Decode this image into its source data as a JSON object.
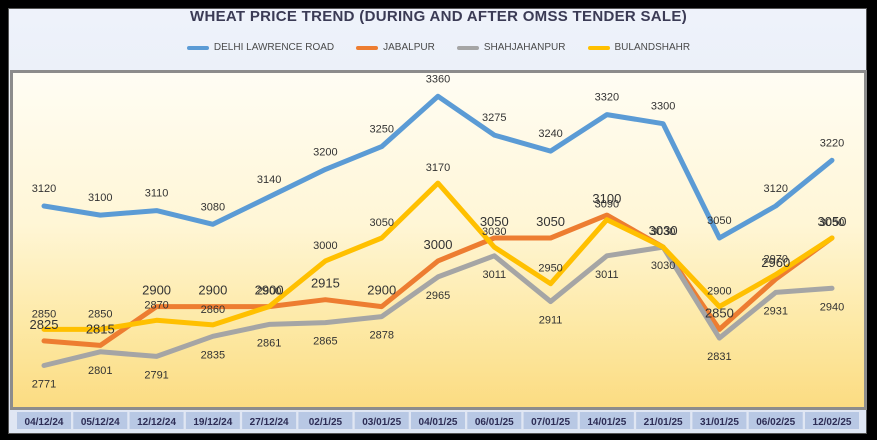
{
  "chart_data": {
    "type": "line",
    "title": "WHEAT PRICE TREND (DURING AND AFTER  OMSS TENDER SALE)",
    "xlabel": "",
    "ylabel": "",
    "ylim": [
      2700,
      3400
    ],
    "grid": false,
    "legend_position": "top",
    "categories": [
      "04/12/24",
      "05/12/24",
      "12/12/24",
      "19/12/24",
      "27/12/24",
      "02/1/25",
      "03/01/25",
      "04/01/25",
      "06/01/25",
      "07/01/25",
      "14/01/25",
      "21/01/25",
      "31/01/25",
      "06/02/25",
      "12/02/25"
    ],
    "series": [
      {
        "name": "DELHI LAWRENCE ROAD",
        "color": "#5b9bd5",
        "values": [
          3120,
          3100,
          3110,
          3080,
          3140,
          3200,
          3250,
          3360,
          3275,
          3240,
          3320,
          3300,
          3050,
          3120,
          3220
        ],
        "labels": [
          "3120",
          "3100",
          "3110",
          "3080",
          "3140",
          "3200",
          "3250",
          "3360",
          "3275",
          "3240",
          "3320",
          "3300",
          "3050",
          "3120",
          "3220"
        ]
      },
      {
        "name": "JABALPUR",
        "color": "#ed7d31",
        "values": [
          2825,
          2815,
          2900,
          2900,
          2900,
          2915,
          2900,
          3000,
          3050,
          3050,
          3100,
          3030,
          2850,
          2960,
          3050
        ],
        "labels": [
          "2825",
          "2815",
          "2900",
          "2900",
          "2900",
          "2915",
          "2900",
          "3000",
          "3050",
          "3050",
          "3100",
          "3030",
          "2850",
          "2960",
          "3050"
        ]
      },
      {
        "name": "SHAHJAHANPUR",
        "color": "#a5a5a5",
        "values": [
          2771,
          2801,
          2791,
          2835,
          2861,
          2865,
          2878,
          2965,
          3011,
          2911,
          3011,
          3030,
          2831,
          2931,
          2940
        ],
        "labels": [
          "2771",
          "2801",
          "2791",
          "2835",
          "2861",
          "2865",
          "2878",
          "2965",
          "3011",
          "2911",
          "3011",
          "3030",
          "2831",
          "2931",
          "2940"
        ]
      },
      {
        "name": "BULANDSHAHR",
        "color": "#ffc000",
        "values": [
          2850,
          2850,
          2870,
          2860,
          2900,
          3000,
          3050,
          3170,
          3030,
          2950,
          3090,
          3030,
          2900,
          2970,
          3050
        ],
        "labels": [
          "2850",
          "2850",
          "2870",
          "2860",
          "2900",
          "3000",
          "3050",
          "3170",
          "3030",
          "2950",
          "3090",
          "3030",
          "2900",
          "2970",
          "3050"
        ]
      }
    ]
  }
}
